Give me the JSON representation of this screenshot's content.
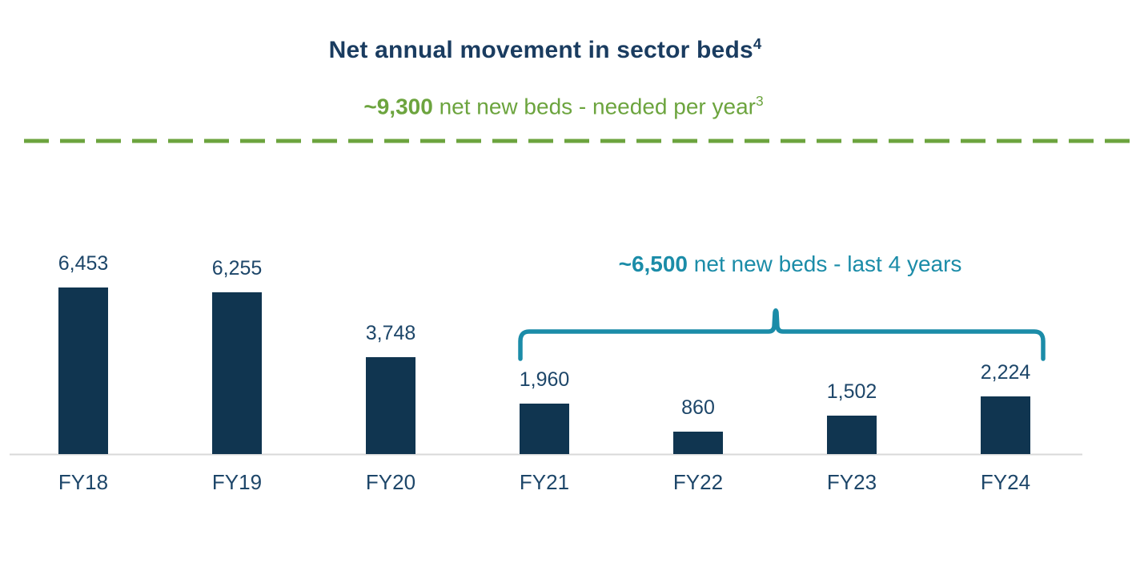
{
  "header": {
    "title": "Net annual movement in sector beds",
    "title_superscript": "4"
  },
  "target_note": {
    "value": "~9,300",
    "text": " net new beds - needed per year",
    "superscript": "3"
  },
  "bracket_note": {
    "value": "~6,500",
    "text": " net new beds - last 4 years"
  },
  "chart_data": {
    "type": "bar",
    "title": "Net annual movement in sector beds",
    "categories": [
      "FY18",
      "FY19",
      "FY20",
      "FY21",
      "FY22",
      "FY23",
      "FY24"
    ],
    "values": [
      6453,
      6255,
      3748,
      1960,
      860,
      1502,
      2224
    ],
    "value_labels": [
      "6,453",
      "6,255",
      "3,748",
      "1,960",
      "860",
      "1,502",
      "2,224"
    ],
    "xlabel": "",
    "ylabel": "",
    "ylim": [
      0,
      7000
    ],
    "grid": false,
    "legend": "none",
    "annotations": [
      {
        "type": "reference_line",
        "style": "dashed",
        "label": "~9,300 net new beds - needed per year",
        "color": "#6CA43E"
      },
      {
        "type": "bracket",
        "span": [
          "FY21",
          "FY24"
        ],
        "label": "~6,500 net new beds - last 4 years",
        "color": "#1B8CA8"
      }
    ],
    "colors": {
      "bar": "#103550",
      "title": "#1A3C60",
      "data_label": "#1D4669",
      "green_accent": "#6CA43E",
      "teal_accent": "#1B8CA8",
      "baseline": "#D9D9D9"
    }
  }
}
